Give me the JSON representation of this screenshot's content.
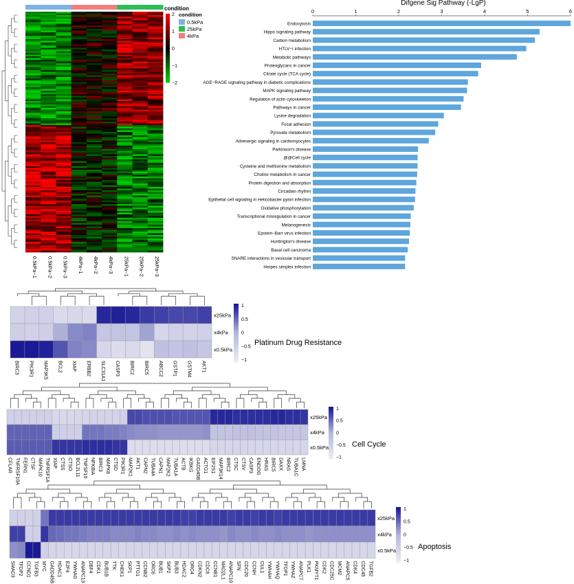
{
  "heatmap": {
    "top_label": "condition",
    "columns": [
      "0.5kPa−1",
      "0.5kPa−2",
      "0.5kPa−3",
      "4kPa−1",
      "4kPa−2",
      "4kPa−3",
      "25kPa−1",
      "25kPa−2",
      "25kPa−3"
    ],
    "column_groups": [
      "0.5kPa",
      "0.5kPa",
      "0.5kPa",
      "4kPa",
      "4kPa",
      "4kPa",
      "25kPa",
      "25kPa",
      "25kPa"
    ],
    "legend_title": "condition",
    "legend_items": [
      {
        "label": "0.5kPa",
        "color": "#7fb2e5"
      },
      {
        "label": "25kPa",
        "color": "#2ebd59"
      },
      {
        "label": "4kPa",
        "color": "#f08080"
      }
    ],
    "scale_ticks": [
      "2",
      "1",
      "0",
      "−1",
      "−2"
    ],
    "colors": {
      "low": "#00d000",
      "mid": "#000000",
      "high": "#ff0000"
    }
  },
  "bar_panel": {
    "chart_data": {
      "type": "bar",
      "title": "Difgene Sig Pathway (-LgP)",
      "orientation": "horizontal",
      "xlim": [
        0,
        6
      ],
      "xticks": [
        "0",
        "1",
        "2",
        "3",
        "4",
        "5",
        "6"
      ],
      "categories": [
        "Endocytosis",
        "Hippo signaling pathway",
        "Carbon metabolism",
        "HTLV−I infection",
        "Metabolic pathways",
        "Proteoglycans in cancer",
        "Citrate cycle (TCA cycle)",
        "AGE−RAGE signaling pathway in diabetic complications",
        "MAPK signaling pathway",
        "Regulation of actin cytoskeleton",
        "Pathways in cancer",
        "Lysine degradation",
        "Focal adhesion",
        "Pyruvate metabolism",
        "Adrenergic signaling in cardiomyocytes",
        "Parkinson's disease",
        "@@Cell cycle",
        "Cysteine and methionine metabolism",
        "Choline metabolism in cancer",
        "Protein digestion and absorption",
        "Circadian rhythm",
        "Epithelial cell signaling in Helicobacter pylori infection",
        "Oxidative phosphorylation",
        "Transcriptional misregulation in cancer",
        "Melanogenesis",
        "Epstein−Barr virus infection",
        "Huntington's disease",
        "Basal cell carcinoma",
        "SNARE interactions in vesicular transport",
        "Herpes simplex infection"
      ],
      "values": [
        6.0,
        5.28,
        5.17,
        4.97,
        4.75,
        3.92,
        3.85,
        3.61,
        3.59,
        3.51,
        3.45,
        3.05,
        2.92,
        2.85,
        2.7,
        2.45,
        2.44,
        2.44,
        2.43,
        2.41,
        2.39,
        2.38,
        2.35,
        2.28,
        2.27,
        2.26,
        2.24,
        2.21,
        2.15,
        2.15
      ],
      "bar_color": "#5ea6dc"
    }
  },
  "pathway_heatmaps": [
    {
      "title": "Platinum Drug Resistance",
      "rows": [
        "x25kPa",
        "x4kPa",
        "x0.5kPa"
      ],
      "genes": [
        "BIRC3",
        "PIK3R1",
        "MAP3K5",
        "BCL2",
        "XIAP",
        "ERBB2",
        "SLC31A1",
        "CASP3",
        "BIRC2",
        "BIRC5",
        "ABCC2",
        "GSTP1",
        "GSTM4",
        "AKT1"
      ],
      "matrix": [
        [
          -0.65,
          -0.6,
          -0.6,
          -0.8,
          -0.75,
          -0.8,
          1.1,
          1.15,
          1.1,
          0.95,
          0.9,
          0.85,
          0.85,
          0.9
        ],
        [
          -0.55,
          -0.6,
          -0.55,
          0.05,
          0.35,
          0.4,
          -0.35,
          -0.3,
          -0.3,
          0.15,
          -0.7,
          -0.6,
          -0.65,
          -0.6
        ],
        [
          1.2,
          1.2,
          1.15,
          0.75,
          0.4,
          0.35,
          -0.7,
          -0.85,
          -0.8,
          -1.0,
          -0.25,
          -0.3,
          -0.25,
          -0.35
        ]
      ],
      "scale_ticks": [
        "1",
        "0.5",
        "0",
        "−0.5",
        "−1"
      ]
    },
    {
      "title": "Cell Cycle",
      "rows": [
        "x25kPa",
        "x4kPa",
        "x0.5kPa"
      ],
      "genes": [
        "CFLAR",
        "TNFRSF10A",
        "FERN1",
        "CTSF",
        "MAPK10",
        "TNFRSF1A",
        "XIAP",
        "CTSS",
        "CTSO",
        "BCL2L11",
        "TNFSF10",
        "NFKBIA",
        "BIRC3",
        "MAPK8",
        "CTSD",
        "PIK3R1",
        "MAP2K1",
        "AKT1",
        "CAPN2",
        "TUBA4A",
        "CAPN1",
        "MAP2K2",
        "TUBA1A",
        "ACTB",
        "IKBKG",
        "GADD45B",
        "ACTG1",
        "EIF2S1",
        "MAP3K14",
        "BIRC2",
        "CTSC",
        "CTSV",
        "CASP3",
        "ENDOG",
        "HRAS",
        "BIRC5",
        "DAXX",
        "NRAS",
        "TUBA1C",
        "LMNA"
      ],
      "matrix": [
        [
          -0.6,
          -0.6,
          -0.6,
          -0.6,
          -0.6,
          -0.6,
          -0.75,
          -0.75,
          -0.75,
          -0.75,
          -0.7,
          -0.65,
          -0.65,
          -0.65,
          -0.65,
          -0.6,
          0.85,
          0.85,
          0.8,
          0.8,
          0.8,
          0.8,
          0.75,
          0.75,
          0.75,
          0.75,
          0.75,
          1.1,
          1.1,
          1.1,
          1.05,
          1.05,
          1.05,
          1.05,
          1.05,
          1.1,
          1.1,
          1.05,
          1.05,
          1.0
        ],
        [
          0.65,
          0.65,
          0.65,
          0.65,
          0.65,
          0.65,
          -0.55,
          -0.55,
          -0.55,
          -0.55,
          0.5,
          0.5,
          0.5,
          0.45,
          0.45,
          0.4,
          0.35,
          0.3,
          0.3,
          0.3,
          0.25,
          0.25,
          0.25,
          0.25,
          0.25,
          0.25,
          0.3,
          -0.3,
          -0.3,
          -0.3,
          -0.25,
          -0.25,
          -0.25,
          -0.3,
          -0.3,
          -0.3,
          -0.35,
          -0.35,
          -0.35,
          -0.35
        ],
        [
          0.7,
          0.7,
          0.7,
          0.7,
          0.7,
          0.7,
          1.0,
          1.0,
          1.0,
          1.0,
          1.05,
          1.05,
          1.05,
          1.05,
          1.0,
          1.0,
          -0.85,
          -0.85,
          -0.85,
          -0.85,
          -0.85,
          -0.85,
          -0.85,
          -0.85,
          -0.85,
          -0.85,
          -0.85,
          -0.7,
          -0.7,
          -0.7,
          -0.7,
          -0.7,
          -0.7,
          -0.7,
          -0.7,
          -0.7,
          -0.7,
          -0.7,
          -0.7,
          -0.7
        ]
      ],
      "scale_ticks": [
        "1",
        "0.5",
        "0",
        "−0.5",
        "−1"
      ]
    },
    {
      "title": "Apoptosis",
      "rows": [
        "x25kPa",
        "x4kPa",
        "x0.5kPa"
      ],
      "genes": [
        "SMAD3",
        "TFDP2",
        "CCND1",
        "TGFB3",
        "MYC",
        "GADD45B",
        "HDAC1",
        "E2F4",
        "YWHAG",
        "ANAPC13",
        "DBF4",
        "CDK1",
        "BUB1B",
        "TTK",
        "CHEK1",
        "SKP1",
        "PTTG1",
        "CCNB2",
        "ORC6",
        "BUB1",
        "SKP2",
        "BUB3",
        "HDAC2",
        "ORC4",
        "CDKN2",
        "CDC6",
        "CCNB1",
        "MAD2L1",
        "ANAPC10",
        "SFN",
        "CDC20",
        "CCNH",
        "CUL1",
        "YWHAH",
        "YWHAQ",
        "TFDP1",
        "YWHAZ",
        "ANAPC7",
        "PLK1",
        "PKMYT1",
        "CDK2",
        "CDC25C",
        "MCM2",
        "ANAPC5",
        "CDK4",
        "CDC45",
        "TGFB2"
      ],
      "matrix": [
        [
          -0.6,
          -0.6,
          -0.65,
          -0.6,
          0.5,
          0.95,
          0.95,
          0.95,
          0.95,
          0.95,
          0.95,
          0.95,
          0.95,
          0.95,
          0.95,
          0.95,
          0.95,
          0.95,
          0.95,
          0.95,
          0.95,
          0.95,
          0.9,
          0.9,
          0.95,
          0.95,
          0.95,
          0.95,
          0.9,
          0.95,
          0.95,
          0.9,
          0.95,
          0.95,
          0.9,
          0.95,
          0.95,
          0.95,
          0.95,
          0.95,
          0.95,
          0.95,
          0.95,
          0.95,
          0.95,
          0.95,
          0.95
        ],
        [
          0.9,
          0.9,
          -0.6,
          -0.6,
          1.0,
          0.6,
          0.55,
          0.5,
          0.5,
          0.45,
          0.4,
          0.4,
          0.4,
          0.35,
          0.35,
          0.35,
          0.4,
          0.35,
          0.35,
          0.3,
          0.3,
          0.35,
          0.3,
          0.35,
          0.3,
          0.3,
          0.3,
          0.25,
          0.35,
          0.3,
          0.3,
          0.35,
          0.3,
          0.3,
          0.35,
          0.3,
          0.3,
          0.3,
          0.25,
          0.3,
          0.3,
          0.3,
          0.3,
          0.3,
          0.3,
          0.3,
          0.3
        ],
        [
          0.3,
          0.35,
          1.2,
          1.2,
          -0.6,
          -0.7,
          -0.7,
          -0.75,
          -0.7,
          -0.7,
          -0.7,
          -0.7,
          -0.7,
          -0.7,
          -0.75,
          -0.7,
          -0.7,
          -0.7,
          -0.7,
          -0.7,
          -0.7,
          -0.7,
          -0.7,
          -0.7,
          -0.7,
          -0.7,
          -0.7,
          -0.7,
          -0.7,
          -0.7,
          -0.7,
          -0.7,
          -0.7,
          -0.7,
          -0.7,
          -0.7,
          -0.7,
          -0.7,
          -0.7,
          -0.7,
          -0.7,
          -0.7,
          -0.7,
          -0.7,
          -0.7,
          -0.7,
          -0.7
        ]
      ],
      "scale_ticks": [
        "1",
        "0.5",
        "0",
        "−0.5",
        "−1"
      ]
    }
  ]
}
